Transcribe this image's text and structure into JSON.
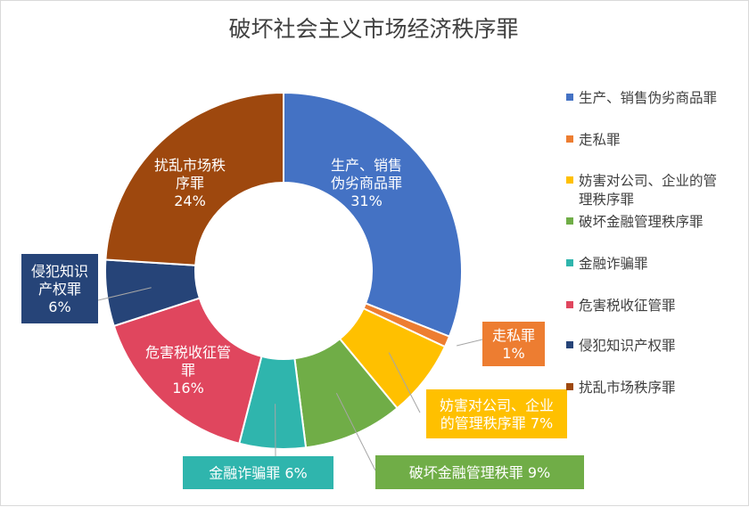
{
  "chart_data": {
    "type": "pie",
    "title": "破坏社会主义市场经济秩序罪",
    "legend_position": "right",
    "categories": [
      "生产、销售伪劣商品罪",
      "走私罪",
      "妨害对公司、企业的管理秩序罪",
      "破坏金融管理秩序罪",
      "金融诈骗罪",
      "危害税收征管罪",
      "侵犯知识产权罪",
      "扰乱市场秩序罪"
    ],
    "values": [
      31,
      1,
      7,
      9,
      6,
      16,
      6,
      24
    ],
    "value_labels": [
      "31%",
      "1%",
      "7%",
      "9%",
      "6%",
      "16%",
      "6%",
      "24%"
    ],
    "colors": [
      "#4472c4",
      "#ed7d31",
      "#ffc000",
      "#70ad47",
      "#2fb5ad",
      "#e0465e",
      "#264478",
      "#9e480e"
    ],
    "legend_lines": [
      [
        "生产、销售伪劣商品罪"
      ],
      [
        "走私罪"
      ],
      [
        "妨害对公司、企业的管",
        "理秩序罪"
      ],
      [
        "破坏金融管理秩序罪"
      ],
      [
        "金融诈骗罪"
      ],
      [
        "危害税收征管罪"
      ],
      [
        "侵犯知识产权罪"
      ],
      [
        "扰乱市场秩序罪"
      ]
    ],
    "data_label_lines": [
      [
        "生产、销售",
        "伪劣商品罪",
        "31%"
      ],
      [
        "走私罪",
        "1%"
      ],
      [
        "妨害对公司、企业",
        "的管理秩序罪 7%"
      ],
      [
        "破坏金融管理秩罪 9%"
      ],
      [
        "金融诈骗罪  6%"
      ],
      [
        "危害税收征管",
        "罪",
        "16%"
      ],
      [
        "侵犯知识",
        "产权罪",
        "6%"
      ],
      [
        "扰乱市场秩",
        "序罪",
        "24%"
      ]
    ]
  }
}
